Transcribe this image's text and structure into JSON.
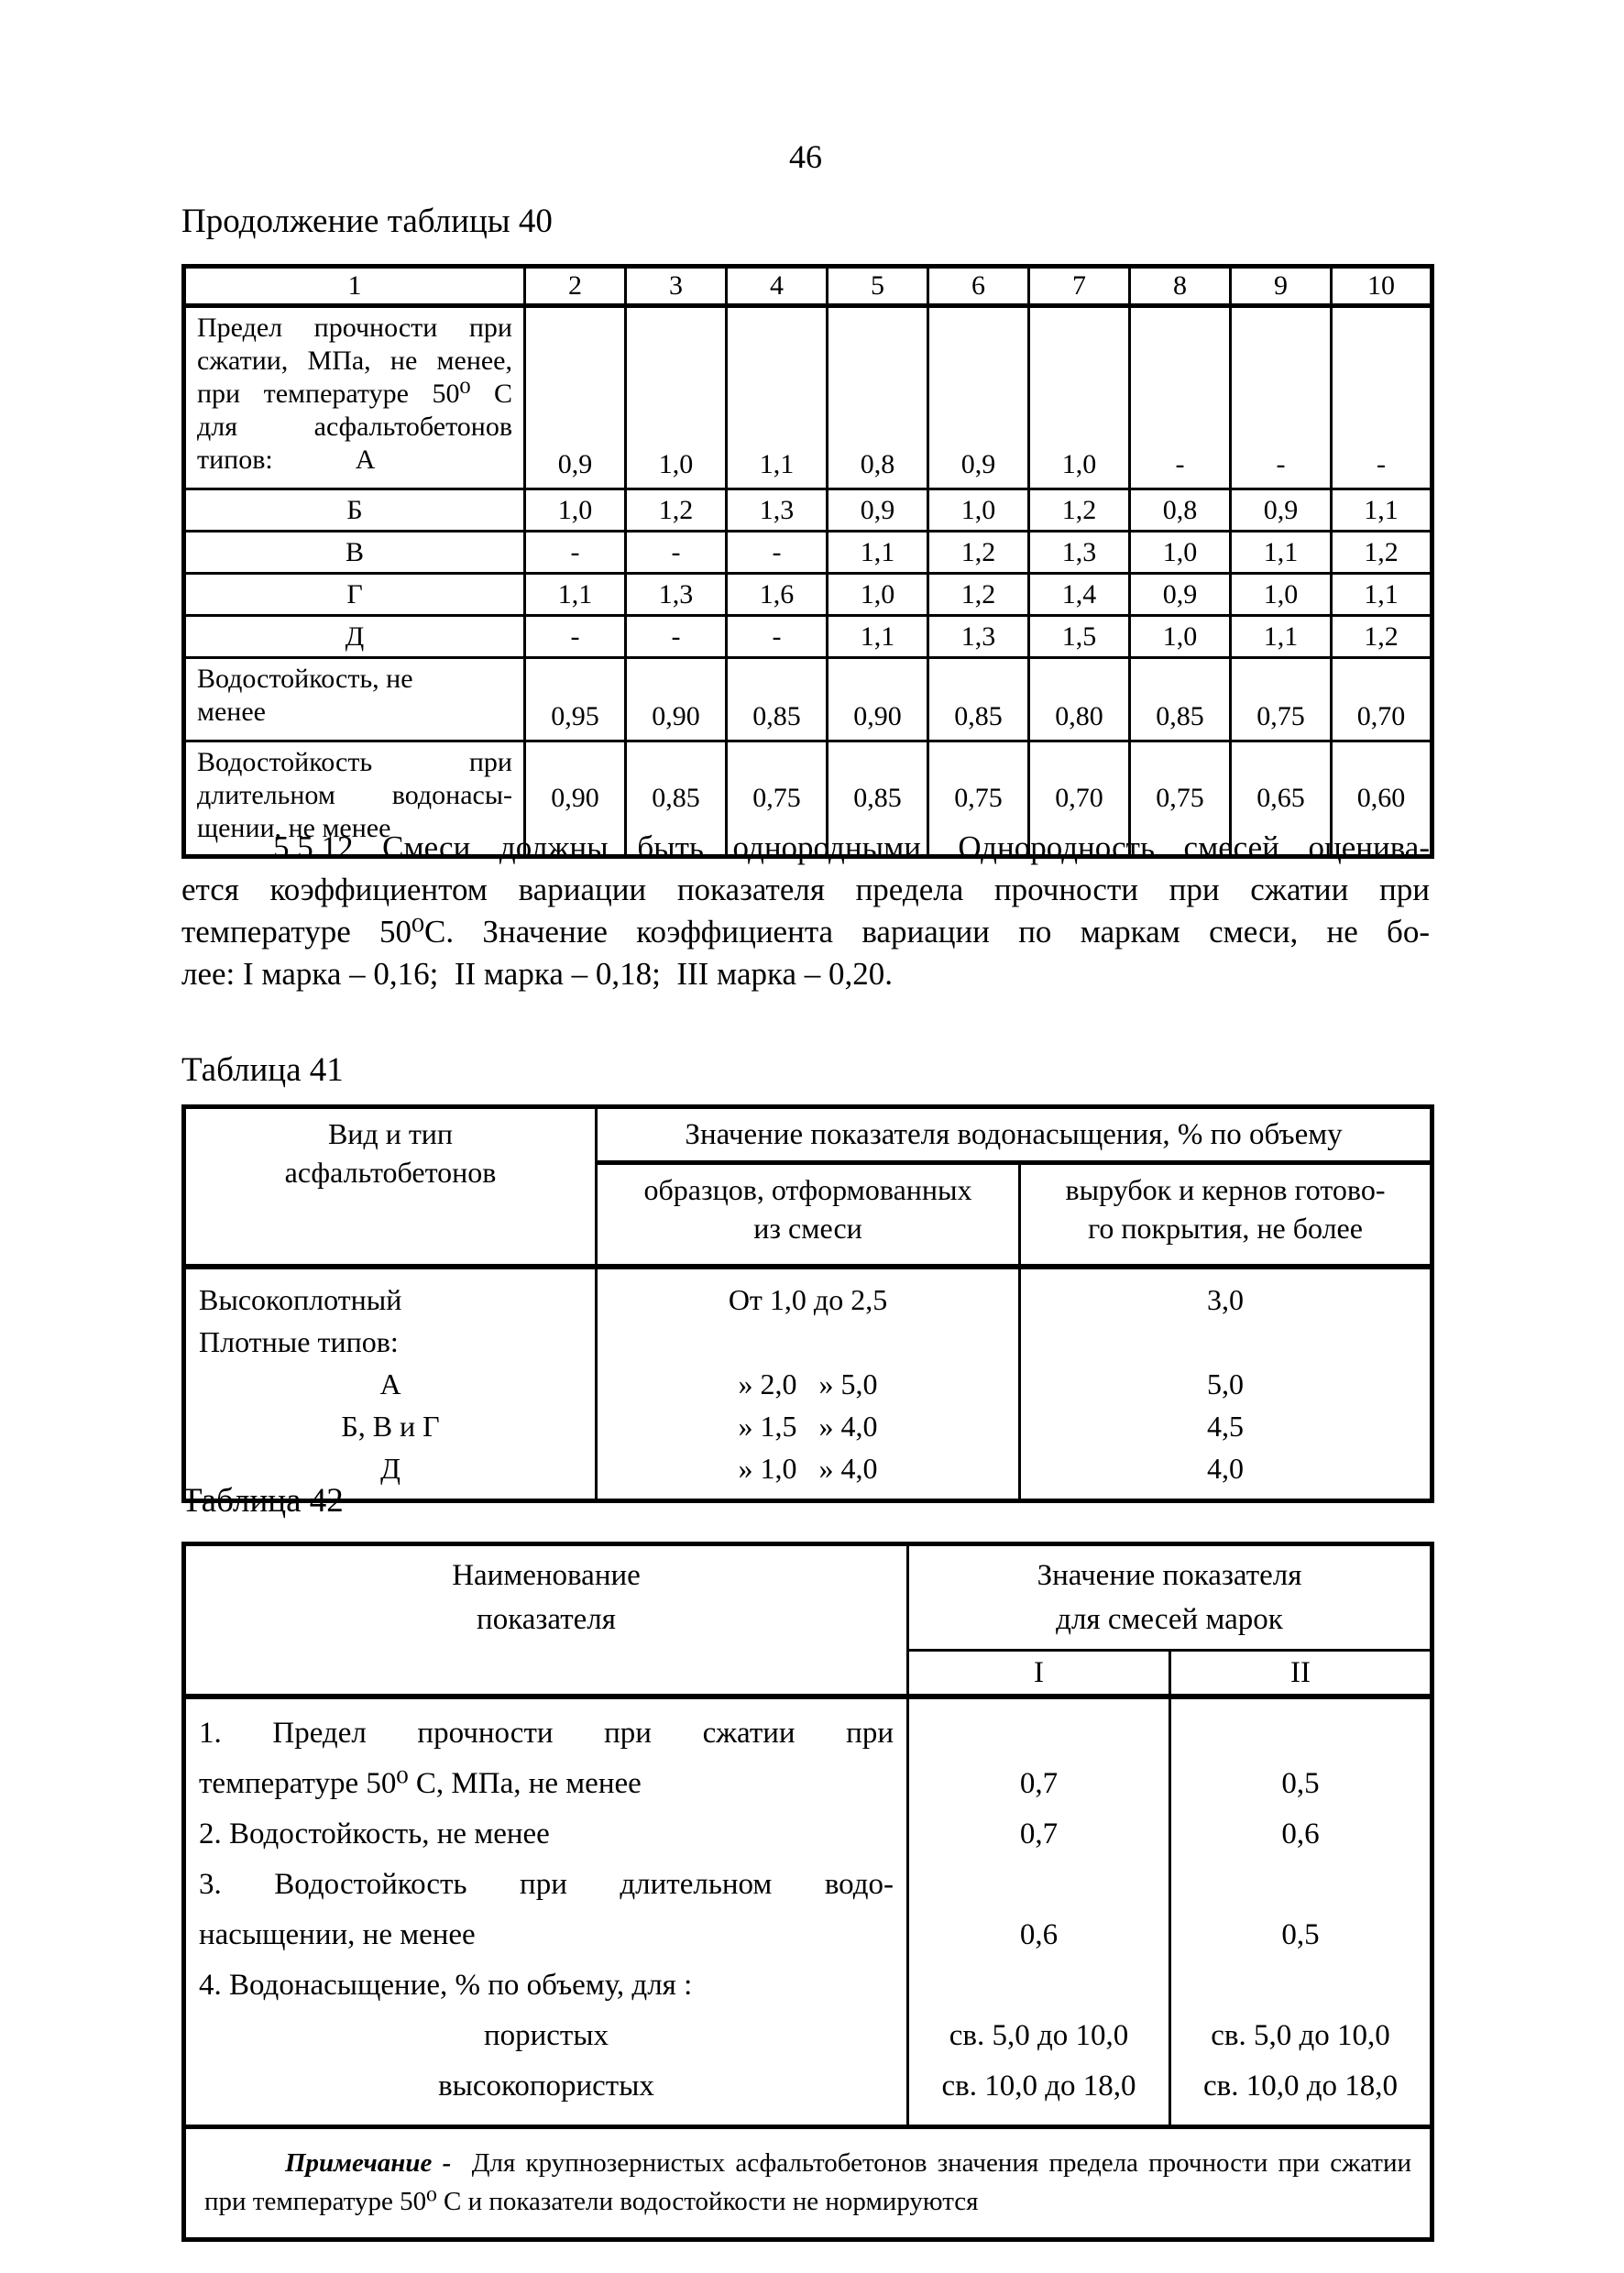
{
  "page": {
    "number": "46"
  },
  "table40": {
    "caption": "Продолжение таблицы 40",
    "header_cols": [
      "1",
      "2",
      "3",
      "4",
      "5",
      "6",
      "7",
      "8",
      "9",
      "10"
    ],
    "rows": [
      {
        "label": [
          {
            "t": "Предел прочности при",
            "a": "j"
          },
          {
            "t": "сжатии, МПа, не менее,",
            "a": "j"
          },
          {
            "t": "при температуре 50⁰ С",
            "a": "j"
          },
          {
            "t": "для асфальтобетонов",
            "a": "j"
          },
          {
            "t": "типов:            А",
            "a": "l"
          }
        ],
        "values": [
          "0,9",
          "1,0",
          "1,1",
          "0,8",
          "0,9",
          "1,0",
          "-",
          "-",
          "-"
        ]
      },
      {
        "label": [
          {
            "t": "Б",
            "a": "c"
          }
        ],
        "values": [
          "1,0",
          "1,2",
          "1,3",
          "0,9",
          "1,0",
          "1,2",
          "0,8",
          "0,9",
          "1,1"
        ]
      },
      {
        "label": [
          {
            "t": "В",
            "a": "c"
          }
        ],
        "values": [
          "-",
          "-",
          "-",
          "1,1",
          "1,2",
          "1,3",
          "1,0",
          "1,1",
          "1,2"
        ]
      },
      {
        "label": [
          {
            "t": "Г",
            "a": "c"
          }
        ],
        "values": [
          "1,1",
          "1,3",
          "1,6",
          "1,0",
          "1,2",
          "1,4",
          "0,9",
          "1,0",
          "1,1"
        ]
      },
      {
        "label": [
          {
            "t": "Д",
            "a": "c"
          }
        ],
        "values": [
          "-",
          "-",
          "-",
          "1,1",
          "1,3",
          "1,5",
          "1,0",
          "1,1",
          "1,2"
        ]
      },
      {
        "label": [
          {
            "t": "Водостойкость, не",
            "a": "l"
          },
          {
            "t": "менее",
            "a": "l"
          }
        ],
        "values": [
          "0,95",
          "0,90",
          "0,85",
          "0,90",
          "0,85",
          "0,80",
          "0,85",
          "0,75",
          "0,70"
        ]
      },
      {
        "label": [
          {
            "t": "Водостойкость при",
            "a": "j"
          },
          {
            "t": "длительном водонасы-",
            "a": "j"
          },
          {
            "t": "щении, не менее",
            "a": "l"
          }
        ],
        "values": [
          "0,90",
          "0,85",
          "0,75",
          "0,85",
          "0,75",
          "0,70",
          "0,75",
          "0,65",
          "0,60"
        ]
      }
    ]
  },
  "paragraph": {
    "lines": [
      "5.5.12 Смеси должны быть однородными. Однородность смесей оценива-",
      "ется коэффициентом вариации показателя предела прочности при сжатии при",
      "температуре 50⁰С. Значение коэффициента вариации по маркам смеси, не бо-",
      "лее: I марка – 0,16;  II марка – 0,18;  III марка – 0,20."
    ]
  },
  "table41": {
    "caption": "Таблица 41",
    "col1_header": [
      "Вид и тип",
      "асфальтобетонов"
    ],
    "span_header": "Значение показателя водонасыщения, % по объему",
    "sub_headers": [
      [
        "образцов, отформованных",
        "из смеси"
      ],
      [
        "вырубок и кернов готово-",
        "го покрытия, не более"
      ]
    ],
    "body": {
      "col1": [
        {
          "t": "Высокоплотный",
          "a": "l"
        },
        {
          "t": "Плотные типов:",
          "a": "l"
        },
        {
          "t": "А",
          "a": "c"
        },
        {
          "t": "Б, В и Г",
          "a": "c"
        },
        {
          "t": "Д",
          "a": "c"
        }
      ],
      "col2": [
        "От 1,0 до 2,5",
        "",
        "» 2,0   » 5,0",
        "» 1,5   » 4,0",
        "» 1,0   » 4,0"
      ],
      "col3": [
        "3,0",
        "",
        "5,0",
        "4,5",
        "4,0"
      ]
    }
  },
  "table42": {
    "caption": "Таблица 42",
    "col1_header": [
      "Наименование",
      "показателя"
    ],
    "span_header": [
      "Значение показателя",
      "для смесей марок"
    ],
    "sub_headers": [
      "I",
      "II"
    ],
    "body": {
      "col1": [
        {
          "t": "1. Предел прочности при сжатии при",
          "a": "j"
        },
        {
          "t": "температуре 50⁰ С, МПа, не менее",
          "a": "l"
        },
        {
          "t": "2. Водостойкость, не менее",
          "a": "l"
        },
        {
          "t": "3. Водостойкость при длительном водо-",
          "a": "j"
        },
        {
          "t": "насыщении, не менее",
          "a": "l"
        },
        {
          "t": "4. Водонасыщение, % по объему, для :",
          "a": "l"
        },
        {
          "t": "пористых",
          "a": "c"
        },
        {
          "t": "высокопористых",
          "a": "c"
        }
      ],
      "colI": [
        "",
        "0,7",
        "0,7",
        "",
        "0,6",
        "",
        "св. 5,0 до 10,0",
        "св. 10,0 до 18,0"
      ],
      "colII": [
        "",
        "0,5",
        "0,6",
        "",
        "0,5",
        "",
        "св. 5,0 до 10,0",
        "св. 10,0 до 18,0"
      ]
    },
    "note": {
      "label": "Примечание -",
      "line1_rest": "Для крупнозернистых асфальтобетонов значения предела прочности при сжатии",
      "line2": "при температуре 50⁰ С и показатели водостойкости не нормируются"
    }
  }
}
